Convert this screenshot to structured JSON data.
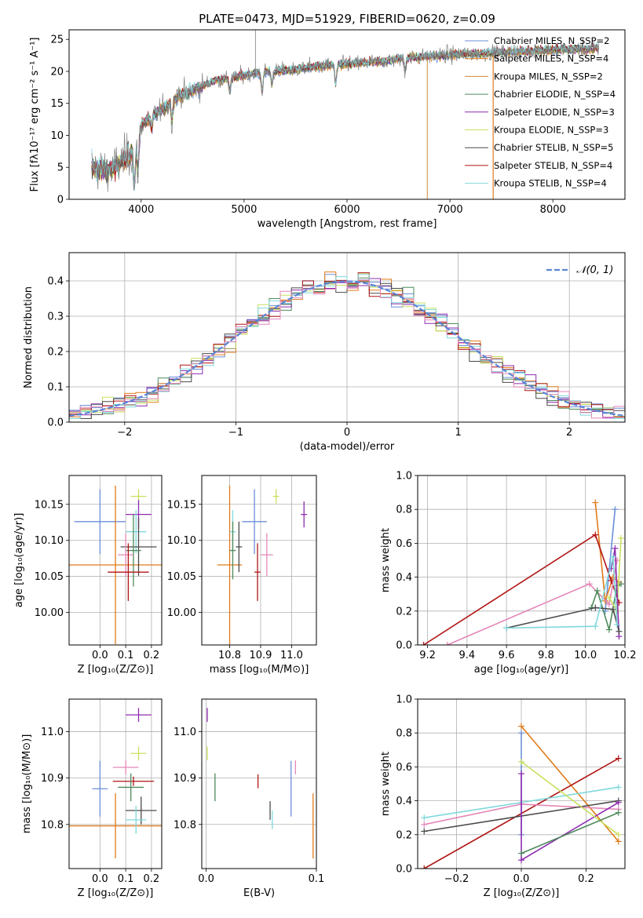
{
  "colors": {
    "chabrier_miles": "#6b8fd8",
    "salpeter_miles": "#e07b1a",
    "kroupa_miles": "#d08a3a",
    "chabrier_elodie": "#4e8a5c",
    "salpeter_elodie": "#8e2cb0",
    "kroupa_elodie": "#c8e060",
    "chabrier_stelib": "#4a4a4a",
    "salpeter_stelib": "#b01414",
    "kroupa_stelib": "#80d8dc",
    "pink": "#e487b8",
    "normal": "#5b85d6",
    "grid": "#b0b0b0"
  },
  "chart_data": [
    {
      "id": "spectrum",
      "type": "line",
      "title": "PLATE=0473, MJD=51929, FIBERID=0620, z=0.09",
      "xlabel": "wavelength [Angstrom, rest frame]",
      "ylabel": "Flux [fλ10⁻¹⁷ erg cm⁻² s⁻¹ A⁻¹]",
      "xlim": [
        3300,
        8700
      ],
      "ylim": [
        0,
        26.5
      ],
      "xticks": [
        4000,
        5000,
        6000,
        7000,
        8000
      ],
      "yticks": [
        0,
        5,
        10,
        15,
        20,
        25
      ],
      "legend_loc": "right",
      "legend": [
        "Chabrier MILES, N_SSP=2",
        "Salpeter MILES, N_SSP=4",
        "Kroupa MILES, N_SSP=2",
        "Chabrier ELODIE, N_SSP=4",
        "Salpeter ELODIE, N_SSP=3",
        "Kroupa ELODIE, N_SSP=3",
        "Chabrier STELIB, N_SSP=5",
        "Salpeter STELIB, N_SSP=4",
        "Kroupa STELIB, N_SSP=4"
      ],
      "continuum": {
        "x": [
          3520,
          3700,
          3850,
          3950,
          4000,
          4100,
          4200,
          4350,
          4500,
          4700,
          4900,
          5100,
          5300,
          5500,
          5700,
          5900,
          6100,
          6300,
          6500,
          6700,
          6900,
          7100,
          7300,
          7500,
          7700,
          7900,
          8100,
          8300,
          8450
        ],
        "y": [
          5.0,
          4.5,
          6.5,
          8.0,
          11.5,
          13.0,
          14.0,
          16.0,
          17.0,
          18.5,
          19.0,
          19.8,
          20.0,
          20.3,
          20.8,
          21.0,
          21.3,
          21.5,
          22.0,
          22.2,
          22.5,
          22.7,
          22.8,
          23.0,
          23.1,
          23.3,
          23.4,
          23.5,
          23.6
        ]
      },
      "x_range": [
        3520,
        8450
      ]
    },
    {
      "id": "residuals",
      "type": "area",
      "xlabel": "(data-model)/error",
      "ylabel": "Normed distribution",
      "xlim": [
        -2.5,
        2.5
      ],
      "ylim": [
        0,
        0.48
      ],
      "xticks": [
        -2,
        -1,
        0,
        1,
        2
      ],
      "yticks": [
        0.0,
        0.1,
        0.2,
        0.3,
        0.4
      ],
      "legend": [
        "𝒩(0, 1)"
      ],
      "legend_loc": "upper right",
      "bins": 50
    },
    {
      "id": "age_vs_Z",
      "type": "scatter",
      "xlabel": "Z [log₁₀(Z/Z⊙)]",
      "ylabel": "age  [log₁₀(age/yr)]",
      "xlim": [
        -0.12,
        0.24
      ],
      "ylim": [
        9.955,
        10.19
      ],
      "xticks": [
        0.0,
        0.1,
        0.2
      ],
      "yticks": [
        10.0,
        10.05,
        10.1,
        10.15
      ],
      "points": [
        {
          "c": "chabrier_miles",
          "x": 0.0,
          "y": 10.126,
          "xe": 0.1,
          "ye": 0.045
        },
        {
          "c": "salpeter_miles",
          "x": 0.06,
          "y": 10.066,
          "xe": 0.18,
          "ye": 0.11
        },
        {
          "c": "kroupa_elodie",
          "x": 0.15,
          "y": 10.161,
          "xe": 0.03,
          "ye": 0.01
        },
        {
          "c": "salpeter_elodie",
          "x": 0.15,
          "y": 10.136,
          "xe": 0.05,
          "ye": 0.02
        },
        {
          "c": "kroupa_stelib",
          "x": 0.14,
          "y": 10.112,
          "xe": 0.04,
          "ye": 0.03
        },
        {
          "c": "chabrier_stelib",
          "x": 0.15,
          "y": 10.091,
          "xe": 0.07,
          "ye": 0.04
        },
        {
          "c": "chabrier_elodie",
          "x": 0.13,
          "y": 10.086,
          "xe": 0.03,
          "ye": 0.05
        },
        {
          "c": "pink",
          "x": 0.1,
          "y": 10.08,
          "xe": 0.03,
          "ye": 0.03
        },
        {
          "c": "salpeter_stelib",
          "x": 0.11,
          "y": 10.056,
          "xe": 0.08,
          "ye": 0.04
        }
      ]
    },
    {
      "id": "age_vs_mass",
      "type": "scatter",
      "xlabel": "mass [log₁₀(M/M⊙)]",
      "ylabel": "",
      "xlim": [
        10.71,
        11.08
      ],
      "ylim": [
        9.955,
        10.19
      ],
      "xticks": [
        10.8,
        10.9,
        11.0
      ],
      "yticks": [
        10.0,
        10.05,
        10.1,
        10.15
      ],
      "points": [
        {
          "c": "chabrier_miles",
          "x": 10.88,
          "y": 10.126,
          "xe": 0.04,
          "ye": 0.045
        },
        {
          "c": "salpeter_miles",
          "x": 10.8,
          "y": 10.066,
          "xe": 0.04,
          "ye": 0.11
        },
        {
          "c": "kroupa_elodie",
          "x": 10.95,
          "y": 10.161,
          "xe": 0.01,
          "ye": 0.01
        },
        {
          "c": "salpeter_elodie",
          "x": 11.04,
          "y": 10.136,
          "xe": 0.01,
          "ye": 0.018
        },
        {
          "c": "kroupa_stelib",
          "x": 10.81,
          "y": 10.112,
          "xe": 0.01,
          "ye": 0.03
        },
        {
          "c": "chabrier_stelib",
          "x": 10.83,
          "y": 10.091,
          "xe": 0.01,
          "ye": 0.035
        },
        {
          "c": "chabrier_elodie",
          "x": 10.81,
          "y": 10.086,
          "xe": 0.01,
          "ye": 0.04
        },
        {
          "c": "pink",
          "x": 10.92,
          "y": 10.08,
          "xe": 0.02,
          "ye": 0.03
        },
        {
          "c": "salpeter_stelib",
          "x": 10.89,
          "y": 10.056,
          "xe": 0.01,
          "ye": 0.04
        }
      ]
    },
    {
      "id": "weight_vs_age",
      "type": "line",
      "xlabel": "age  [log₁₀(age/yr)]",
      "ylabel": "mass weight",
      "xlim": [
        9.15,
        10.2
      ],
      "ylim": [
        0,
        1
      ],
      "xticks": [
        9.2,
        9.4,
        9.6,
        9.8,
        10.0,
        10.2
      ],
      "yticks": [
        0.0,
        0.2,
        0.4,
        0.6,
        0.8,
        1.0
      ],
      "series": [
        {
          "c": "chabrier_miles",
          "x": [
            10.1,
            10.15
          ],
          "y": [
            0.2,
            0.8
          ]
        },
        {
          "c": "salpeter_miles",
          "x": [
            10.05,
            10.1,
            10.14,
            10.17
          ],
          "y": [
            0.84,
            0.26,
            0.4,
            0.37
          ]
        },
        {
          "c": "salpeter_stelib",
          "x": [
            9.18,
            10.05,
            10.13,
            10.17
          ],
          "y": [
            0.0,
            0.65,
            0.38,
            0.25
          ]
        },
        {
          "c": "pink",
          "x": [
            9.3,
            10.02,
            10.12,
            10.16
          ],
          "y": [
            0.0,
            0.36,
            0.24,
            0.5
          ]
        },
        {
          "c": "chabrier_elodie",
          "x": [
            10.03,
            10.06,
            10.12,
            10.16,
            10.18
          ],
          "y": [
            0.22,
            0.32,
            0.09,
            0.35,
            0.36
          ]
        },
        {
          "c": "kroupa_elodie",
          "x": [
            10.12,
            10.16,
            10.18
          ],
          "y": [
            0.28,
            0.2,
            0.63
          ]
        },
        {
          "c": "salpeter_elodie",
          "x": [
            10.13,
            10.15,
            10.17
          ],
          "y": [
            0.45,
            0.57,
            0.05
          ]
        },
        {
          "c": "chabrier_stelib",
          "x": [
            9.6,
            10.05,
            10.14,
            10.17
          ],
          "y": [
            0.1,
            0.22,
            0.21,
            0.08
          ]
        },
        {
          "c": "kroupa_stelib",
          "x": [
            9.6,
            10.05,
            10.14,
            10.16
          ],
          "y": [
            0.1,
            0.11,
            0.52,
            0.12
          ]
        }
      ]
    },
    {
      "id": "mass_vs_Z",
      "type": "scatter",
      "xlabel": "Z [log₁₀(Z/Z⊙)]",
      "ylabel": "mass [log₁₀(M/M⊙)]",
      "xlim": [
        -0.12,
        0.24
      ],
      "ylim": [
        10.705,
        11.07
      ],
      "xticks": [
        0.0,
        0.1,
        0.2
      ],
      "yticks": [
        10.8,
        10.9,
        11.0
      ],
      "points": [
        {
          "c": "chabrier_miles",
          "x": 0.0,
          "y": 10.877,
          "xe": 0.03,
          "ye": 0.06
        },
        {
          "c": "salpeter_miles",
          "x": 0.06,
          "y": 10.797,
          "xe": 0.18,
          "ye": 0.07
        },
        {
          "c": "salpeter_elodie",
          "x": 0.15,
          "y": 11.036,
          "xe": 0.05,
          "ye": 0.015
        },
        {
          "c": "kroupa_elodie",
          "x": 0.15,
          "y": 10.953,
          "xe": 0.03,
          "ye": 0.015
        },
        {
          "c": "pink",
          "x": 0.1,
          "y": 10.923,
          "xe": 0.05,
          "ye": 0.015
        },
        {
          "c": "salpeter_stelib",
          "x": 0.13,
          "y": 10.893,
          "xe": 0.08,
          "ye": 0.01
        },
        {
          "c": "chabrier_elodie",
          "x": 0.12,
          "y": 10.88,
          "xe": 0.05,
          "ye": 0.03
        },
        {
          "c": "chabrier_stelib",
          "x": 0.16,
          "y": 10.83,
          "xe": 0.06,
          "ye": 0.03
        },
        {
          "c": "kroupa_stelib",
          "x": 0.14,
          "y": 10.81,
          "xe": 0.04,
          "ye": 0.03
        }
      ]
    },
    {
      "id": "mass_vs_ebv",
      "type": "scatter",
      "xlabel": "E(B-V)",
      "ylabel": "",
      "xlim": [
        -0.004,
        0.1
      ],
      "ylim": [
        10.705,
        11.07
      ],
      "xticks": [
        0.0,
        0.1
      ],
      "yticks": [
        10.8,
        10.9,
        11.0
      ],
      "points": [
        {
          "c": "salpeter_elodie",
          "x": 0.001,
          "y": 11.036,
          "xe": 0.0,
          "ye": 0.015
        },
        {
          "c": "kroupa_elodie",
          "x": 0.001,
          "y": 10.953,
          "xe": 0.0,
          "ye": 0.015
        },
        {
          "c": "chabrier_elodie",
          "x": 0.008,
          "y": 10.88,
          "xe": 0.0,
          "ye": 0.03
        },
        {
          "c": "salpeter_stelib",
          "x": 0.047,
          "y": 10.893,
          "xe": 0.0,
          "ye": 0.015
        },
        {
          "c": "chabrier_stelib",
          "x": 0.058,
          "y": 10.83,
          "xe": 0.0,
          "ye": 0.02
        },
        {
          "c": "kroupa_stelib",
          "x": 0.06,
          "y": 10.81,
          "xe": 0.0,
          "ye": 0.02
        },
        {
          "c": "pink",
          "x": 0.081,
          "y": 10.923,
          "xe": 0.0,
          "ye": 0.015
        },
        {
          "c": "chabrier_miles",
          "x": 0.077,
          "y": 10.877,
          "xe": 0.0,
          "ye": 0.06
        },
        {
          "c": "salpeter_miles",
          "x": 0.097,
          "y": 10.797,
          "xe": 0.0,
          "ye": 0.07
        }
      ]
    },
    {
      "id": "weight_vs_Z",
      "type": "line",
      "xlabel": "Z [log₁₀(Z/Z⊙)]",
      "ylabel": "mass weight",
      "xlim": [
        -0.32,
        0.32
      ],
      "ylim": [
        0,
        1
      ],
      "xticks": [
        -0.2,
        0.0,
        0.2
      ],
      "yticks": [
        0.0,
        0.2,
        0.4,
        0.6,
        0.8,
        1.0
      ],
      "series": [
        {
          "c": "chabrier_miles",
          "x": [
            0.0,
            0.0
          ],
          "y": [
            0.8,
            0.2
          ]
        },
        {
          "c": "salpeter_miles",
          "x": [
            0.0,
            0.3
          ],
          "y": [
            0.84,
            0.16
          ]
        },
        {
          "c": "salpeter_stelib",
          "x": [
            -0.3,
            0.3
          ],
          "y": [
            0.0,
            0.65
          ]
        },
        {
          "c": "kroupa_stelib",
          "x": [
            -0.3,
            0.3
          ],
          "y": [
            0.3,
            0.48
          ]
        },
        {
          "c": "pink",
          "x": [
            -0.3,
            0.0,
            0.3
          ],
          "y": [
            0.26,
            0.38,
            0.35
          ]
        },
        {
          "c": "chabrier_stelib",
          "x": [
            -0.3,
            0.3
          ],
          "y": [
            0.22,
            0.4
          ]
        },
        {
          "c": "salpeter_elodie",
          "x": [
            0.0,
            0.0,
            0.3
          ],
          "y": [
            0.56,
            0.05,
            0.39
          ]
        },
        {
          "c": "kroupa_elodie",
          "x": [
            0.0,
            0.3
          ],
          "y": [
            0.63,
            0.2
          ]
        },
        {
          "c": "chabrier_elodie",
          "x": [
            0.0,
            0.3
          ],
          "y": [
            0.09,
            0.33
          ]
        }
      ]
    }
  ]
}
